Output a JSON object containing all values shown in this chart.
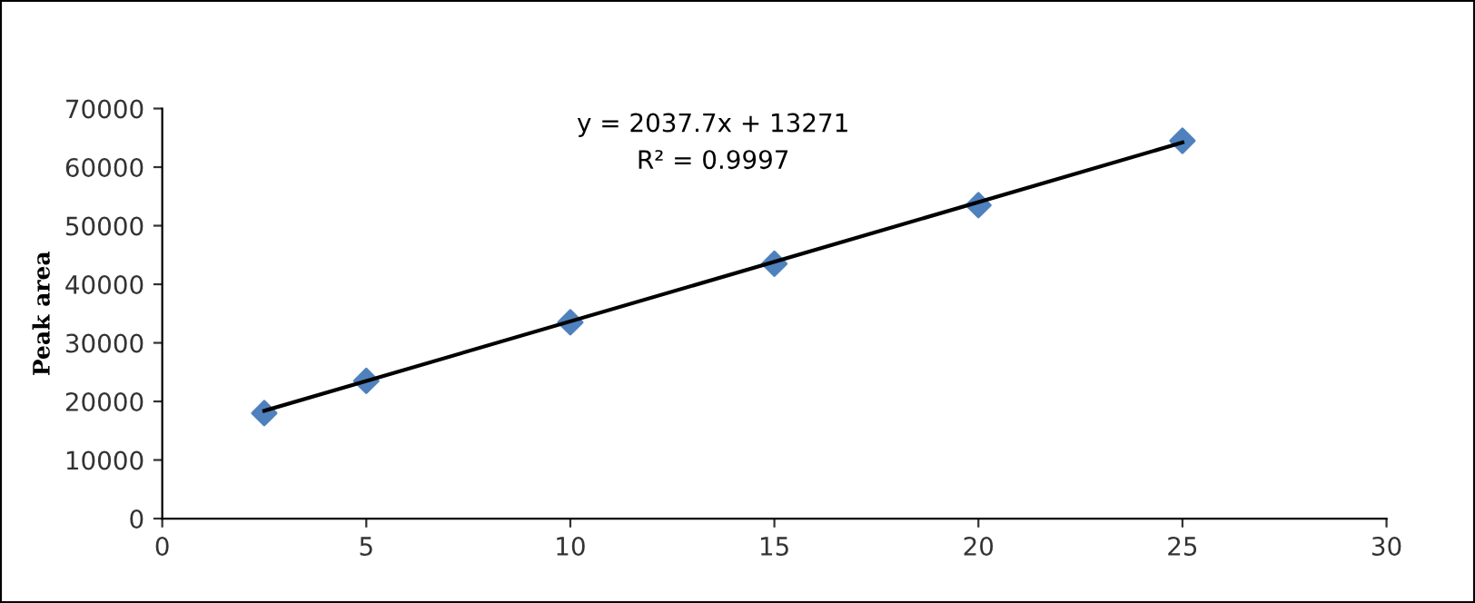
{
  "chart_data": {
    "type": "scatter",
    "ylabel": "Peak area",
    "annotations": [
      "y = 2037.7x + 13271",
      "R² = 0.9997"
    ],
    "series": [
      {
        "color": "#4f81bd",
        "marker": "diamond",
        "x": [
          2.5,
          5,
          10,
          15,
          20,
          25
        ],
        "values": [
          18000,
          23500,
          33500,
          43500,
          53500,
          64500
        ]
      },
      {
        "type": "line",
        "color": "#000000",
        "marker": "none",
        "line_style": "solid",
        "x": [
          2.5,
          25
        ],
        "values": [
          18400,
          64200
        ]
      }
    ],
    "xlim": [
      0,
      30
    ],
    "xticks": [
      0,
      5,
      10,
      15,
      20,
      25,
      30
    ],
    "ylim": [
      0,
      70000
    ],
    "yticks": [
      0,
      10000,
      20000,
      30000,
      40000,
      50000,
      60000,
      70000
    ],
    "grid": false
  }
}
